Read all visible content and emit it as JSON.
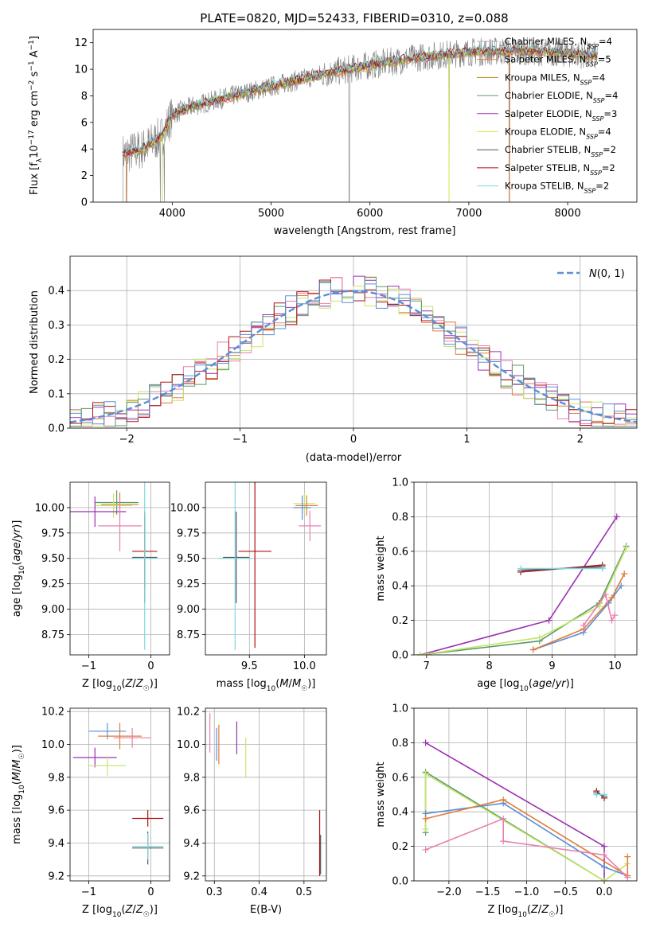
{
  "colors": {
    "spec_grey": "#808080",
    "blue": "#5b8fd6",
    "orange": "#e07b39",
    "olive": "#b8860b",
    "green": "#5e9a6a",
    "purple": "#9b30b0",
    "yellow": "#d6e84a",
    "darkgrey": "#555555",
    "red": "#b01010",
    "cyan": "#7fd8e0",
    "pink": "#e87fb0",
    "lime": "#c5e66a"
  },
  "chart_data": [
    {
      "id": "spectrum",
      "type": "line",
      "title": "PLATE=0820, MJD=52433, FIBERID=0310, z=0.088",
      "xlabel": "wavelength [Angstrom, rest frame]",
      "ylabel": "Flux [f_λ10^-17 erg cm^-2 s^-1 A^-1]",
      "xlim": [
        3200,
        8700
      ],
      "ylim": [
        0,
        13
      ],
      "xticks": [
        "4000",
        "5000",
        "6000",
        "7000",
        "8000"
      ],
      "yticks": [
        "0",
        "2",
        "4",
        "6",
        "8",
        "10",
        "12"
      ],
      "grid": false,
      "legend_position": "right",
      "legend": [
        {
          "name": "Chabrier MILES, N_SSP=4",
          "pre": "Chabrier MILES, N",
          "sub": "SSP",
          "post": "=4",
          "color": "#b0b0b0"
        },
        {
          "name": "Salpeter MILES, N_SSP=5",
          "pre": "Salpeter MILES, N",
          "sub": "SSP",
          "post": "=5",
          "color": "#e07b39"
        },
        {
          "name": "Kroupa MILES, N_SSP=4",
          "pre": "Kroupa MILES, N",
          "sub": "SSP",
          "post": "=4",
          "color": "#b8860b"
        },
        {
          "name": "Chabrier ELODIE, N_SSP=4",
          "pre": "Chabrier ELODIE, N",
          "sub": "SSP",
          "post": "=4",
          "color": "#5e9a6a"
        },
        {
          "name": "Salpeter ELODIE, N_SSP=3",
          "pre": "Salpeter ELODIE, N",
          "sub": "SSP",
          "post": "=3",
          "color": "#9b30b0"
        },
        {
          "name": "Kroupa ELODIE, N_SSP=4",
          "pre": "Kroupa ELODIE, N",
          "sub": "SSP",
          "post": "=4",
          "color": "#d6e84a"
        },
        {
          "name": "Chabrier STELIB, N_SSP=2",
          "pre": "Chabrier STELIB, N",
          "sub": "SSP",
          "post": "=2",
          "color": "#555555"
        },
        {
          "name": "Salpeter STELIB, N_SSP=2",
          "pre": "Salpeter STELIB, N",
          "sub": "SSP",
          "post": "=2",
          "color": "#b01010"
        },
        {
          "name": "Kroupa STELIB, N_SSP=2",
          "pre": "Kroupa STELIB, N",
          "sub": "SSP",
          "post": "=2",
          "color": "#7fd8e0"
        }
      ],
      "data_continuum": {
        "x": [
          3500,
          3700,
          3900,
          4000,
          4200,
          4500,
          5000,
          5500,
          6000,
          6500,
          7000,
          7500,
          8000,
          8300
        ],
        "y": [
          3.6,
          4.0,
          5.0,
          6.6,
          7.2,
          7.8,
          8.7,
          9.6,
          10.3,
          10.9,
          11.3,
          11.4,
          11.2,
          11.0
        ]
      },
      "spikes_to_zero": [
        3500,
        3540,
        3880,
        3920,
        5790,
        6800,
        7410
      ]
    },
    {
      "id": "residuals",
      "type": "histogram",
      "xlabel": "(data-model)/error",
      "ylabel": "Normed distribution",
      "xlim": [
        -2.5,
        2.5
      ],
      "ylim": [
        0,
        0.5
      ],
      "xticks": [
        "−2",
        "−1",
        "0",
        "1",
        "2"
      ],
      "yticks": [
        "0.0",
        "0.1",
        "0.2",
        "0.3",
        "0.4"
      ],
      "grid": true,
      "legend_position": "top-right",
      "legend": [
        {
          "name": "N(0,1)",
          "color": "#5b8fd6",
          "style": "dashed"
        }
      ],
      "bin_width": 0.1,
      "bin_start": -2.5,
      "series_colors": [
        "#e07b39",
        "#9b30b0",
        "#e87fb0",
        "#c5e66a",
        "#5e9a6a",
        "#b01010",
        "#5b8fd6"
      ],
      "envelope": "normal pdf N(0,1)"
    },
    {
      "id": "age_vs_Z",
      "type": "errorbar",
      "xlabel": "Z [log10(Z/Z☉)]",
      "ylabel": "age [log10(age/yr)]",
      "xlim": [
        -1.3,
        0.3
      ],
      "ylim": [
        8.55,
        10.25
      ],
      "xticks": [
        "−1",
        "0"
      ],
      "yticks": [
        "8.75",
        "9.00",
        "9.25",
        "9.50",
        "9.75",
        "10.00"
      ],
      "grid": true,
      "points": [
        {
          "x": -0.55,
          "y": 10.05,
          "xerr": 0.35,
          "yerr": 0.12,
          "color": "#5e9a6a"
        },
        {
          "x": -0.5,
          "y": 10.03,
          "xerr": 0.3,
          "yerr": 0.12,
          "color": "#e07b39"
        },
        {
          "x": -0.6,
          "y": 10.02,
          "xerr": 0.3,
          "yerr": 0.12,
          "color": "#c5e66a"
        },
        {
          "x": -0.9,
          "y": 9.96,
          "xerr": 0.5,
          "yerr": 0.15,
          "color": "#9b30b0"
        },
        {
          "x": -0.5,
          "y": 9.82,
          "xerr": 0.35,
          "yerr": 0.25,
          "color": "#e87fb0"
        },
        {
          "x": -0.1,
          "y": 9.57,
          "xerr": 0.2,
          "yerr": 0.35,
          "color": "#b01010"
        },
        {
          "x": -0.1,
          "y": 9.51,
          "xerr": 0.2,
          "yerr": 0.45,
          "color": "#555555"
        },
        {
          "x": -0.1,
          "y": 9.5,
          "xerr": 0.22,
          "yerr": 0.9,
          "color": "#7fd8e0"
        }
      ]
    },
    {
      "id": "age_vs_mass",
      "type": "errorbar",
      "xlabel": "mass [log10(M/M☉)]",
      "ylabel": "",
      "xlim": [
        9.1,
        10.2
      ],
      "ylim": [
        8.55,
        10.25
      ],
      "xticks": [
        "9.5",
        "10.0"
      ],
      "yticks": [
        "8.75",
        "9.00",
        "9.25",
        "9.50",
        "9.75",
        "10.00"
      ],
      "grid": true,
      "points": [
        {
          "x": 10.0,
          "y": 10.04,
          "xerr": 0.1,
          "yerr": 0.1,
          "color": "#c5e66a"
        },
        {
          "x": 10.02,
          "y": 10.02,
          "xerr": 0.1,
          "yerr": 0.1,
          "color": "#e07b39"
        },
        {
          "x": 9.98,
          "y": 10.0,
          "xerr": 0.08,
          "yerr": 0.12,
          "color": "#5b8fd6"
        },
        {
          "x": 10.05,
          "y": 9.82,
          "xerr": 0.1,
          "yerr": 0.15,
          "color": "#e87fb0"
        },
        {
          "x": 9.55,
          "y": 9.57,
          "xerr": 0.15,
          "yerr": 0.95,
          "color": "#b01010"
        },
        {
          "x": 9.38,
          "y": 9.51,
          "xerr": 0.12,
          "yerr": 0.45,
          "color": "#555555"
        },
        {
          "x": 9.37,
          "y": 9.5,
          "xerr": 0.15,
          "yerr": 0.9,
          "color": "#7fd8e0"
        }
      ]
    },
    {
      "id": "weight_vs_age",
      "type": "line",
      "xlabel": "age [log10(age/yr)]",
      "ylabel": "mass weight",
      "xlim": [
        6.8,
        10.35
      ],
      "ylim": [
        0,
        1.0
      ],
      "xticks": [
        "7",
        "8",
        "9",
        "10"
      ],
      "yticks": [
        "0.0",
        "0.2",
        "0.4",
        "0.6",
        "0.8",
        "1.0"
      ],
      "grid": true,
      "series": [
        {
          "color": "#9b30b0",
          "x": [
            6.9,
            8.95,
            10.03
          ],
          "y": [
            0.0,
            0.2,
            0.8
          ]
        },
        {
          "color": "#5e9a6a",
          "x": [
            6.9,
            8.8,
            9.75,
            10.18
          ],
          "y": [
            0.0,
            0.08,
            0.3,
            0.63
          ]
        },
        {
          "color": "#c5e66a",
          "x": [
            6.9,
            8.8,
            9.75,
            10.18
          ],
          "y": [
            0.0,
            0.1,
            0.28,
            0.62
          ]
        },
        {
          "color": "#5b8fd6",
          "x": [
            8.7,
            9.5,
            9.9,
            10.1
          ],
          "y": [
            0.03,
            0.13,
            0.3,
            0.4
          ]
        },
        {
          "color": "#e07b39",
          "x": [
            8.7,
            9.5,
            9.95,
            10.15
          ],
          "y": [
            0.03,
            0.15,
            0.33,
            0.47
          ]
        },
        {
          "color": "#e87fb0",
          "x": [
            9.5,
            9.85,
            9.95,
            10.0
          ],
          "y": [
            0.17,
            0.35,
            0.2,
            0.23
          ]
        },
        {
          "color": "#b01010",
          "x": [
            8.5,
            9.8
          ],
          "y": [
            0.48,
            0.52
          ]
        },
        {
          "color": "#555555",
          "x": [
            8.5,
            9.8
          ],
          "y": [
            0.49,
            0.51
          ]
        },
        {
          "color": "#7fd8e0",
          "x": [
            8.5,
            9.8
          ],
          "y": [
            0.5,
            0.5
          ]
        }
      ]
    },
    {
      "id": "mass_vs_Z",
      "type": "errorbar",
      "xlabel": "Z [log10(Z/Z☉)]",
      "ylabel": "mass [log10(M/M☉)]",
      "xlim": [
        -1.3,
        0.3
      ],
      "ylim": [
        9.17,
        10.22
      ],
      "xticks": [
        "−1",
        "0"
      ],
      "yticks": [
        "9.2",
        "9.4",
        "9.6",
        "9.8",
        "10.0",
        "10.2"
      ],
      "grid": true,
      "points": [
        {
          "x": -0.7,
          "y": 10.08,
          "xerr": 0.3,
          "yerr": 0.05,
          "color": "#5b8fd6"
        },
        {
          "x": -0.5,
          "y": 10.05,
          "xerr": 0.35,
          "yerr": 0.08,
          "color": "#e07b39"
        },
        {
          "x": -0.3,
          "y": 10.04,
          "xerr": 0.3,
          "yerr": 0.06,
          "color": "#e87fb0"
        },
        {
          "x": -0.9,
          "y": 9.92,
          "xerr": 0.35,
          "yerr": 0.06,
          "color": "#9b30b0"
        },
        {
          "x": -0.7,
          "y": 9.87,
          "xerr": 0.3,
          "yerr": 0.06,
          "color": "#c5e66a"
        },
        {
          "x": -0.05,
          "y": 9.55,
          "xerr": 0.25,
          "yerr": 0.05,
          "color": "#b01010"
        },
        {
          "x": -0.05,
          "y": 9.37,
          "xerr": 0.25,
          "yerr": 0.1,
          "color": "#555555"
        },
        {
          "x": -0.05,
          "y": 9.38,
          "xerr": 0.25,
          "yerr": 0.08,
          "color": "#7fd8e0"
        }
      ]
    },
    {
      "id": "mass_vs_EBV",
      "type": "errorbar",
      "xlabel": "E(B-V)",
      "ylabel": "",
      "xlim": [
        0.28,
        0.55
      ],
      "ylim": [
        9.17,
        10.22
      ],
      "xticks": [
        "0.3",
        "0.4",
        "0.5"
      ],
      "yticks": [
        "9.2",
        "9.4",
        "9.6",
        "9.8",
        "10.0",
        "10.2"
      ],
      "grid": true,
      "points": [
        {
          "x": 0.29,
          "y": 10.07,
          "xerr": 0,
          "yerr": 0.12,
          "color": "#e87fb0"
        },
        {
          "x": 0.305,
          "y": 10.0,
          "xerr": 0,
          "yerr": 0.1,
          "color": "#5b8fd6"
        },
        {
          "x": 0.31,
          "y": 10.0,
          "xerr": 0,
          "yerr": 0.12,
          "color": "#e07b39"
        },
        {
          "x": 0.35,
          "y": 10.04,
          "xerr": 0,
          "yerr": 0.1,
          "color": "#9b30b0"
        },
        {
          "x": 0.37,
          "y": 9.92,
          "xerr": 0,
          "yerr": 0.12,
          "color": "#c5e66a"
        },
        {
          "x": 0.535,
          "y": 9.4,
          "xerr": 0,
          "yerr": 0.2,
          "color": "#b01010"
        },
        {
          "x": 0.537,
          "y": 9.33,
          "xerr": 0,
          "yerr": 0.12,
          "color": "#555555"
        }
      ]
    },
    {
      "id": "weight_vs_Z",
      "type": "line",
      "xlabel": "Z [log10(Z/Z☉)]",
      "ylabel": "mass weight",
      "xlim": [
        -2.45,
        0.42
      ],
      "ylim": [
        0,
        1.0
      ],
      "xticks": [
        "−2.0",
        "−1.5",
        "−1.0",
        "−0.5",
        "0.0"
      ],
      "yticks": [
        "0.0",
        "0.2",
        "0.4",
        "0.6",
        "0.8",
        "1.0"
      ],
      "grid": true,
      "series": [
        {
          "color": "#9b30b0",
          "x": [
            -2.3,
            0.0,
            0.0
          ],
          "y": [
            0.8,
            0.2,
            0.0
          ]
        },
        {
          "color": "#5e9a6a",
          "x": [
            -2.3,
            -2.3,
            0.0
          ],
          "y": [
            0.28,
            0.63,
            0.0
          ]
        },
        {
          "color": "#c5e66a",
          "x": [
            -2.3,
            -2.3,
            0.0,
            0.3
          ],
          "y": [
            0.3,
            0.62,
            0.0,
            0.1
          ]
        },
        {
          "color": "#5b8fd6",
          "x": [
            -2.3,
            -1.3,
            0.0,
            0.3
          ],
          "y": [
            0.39,
            0.45,
            0.08,
            0.03
          ]
        },
        {
          "color": "#e07b39",
          "x": [
            -2.3,
            -1.3,
            0.3,
            0.3
          ],
          "y": [
            0.36,
            0.47,
            0.03,
            0.14
          ]
        },
        {
          "color": "#e87fb0",
          "x": [
            -2.3,
            -1.3,
            -1.3,
            0.0,
            0.3
          ],
          "y": [
            0.18,
            0.36,
            0.23,
            0.15,
            0.02
          ]
        },
        {
          "color": "#b01010",
          "x": [
            -0.1,
            0.0
          ],
          "y": [
            0.52,
            0.48
          ]
        },
        {
          "color": "#555555",
          "x": [
            -0.1,
            0.0
          ],
          "y": [
            0.51,
            0.49
          ]
        },
        {
          "color": "#7fd8e0",
          "x": [
            -0.1,
            0.0
          ],
          "y": [
            0.5,
            0.5
          ]
        }
      ]
    }
  ]
}
